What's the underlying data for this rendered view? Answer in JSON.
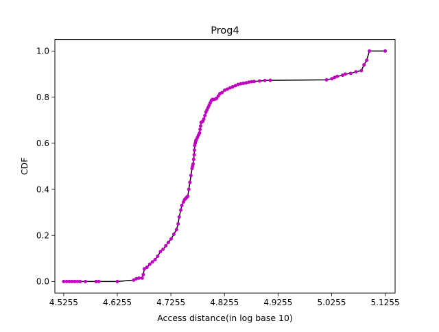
{
  "chart_data": {
    "type": "line",
    "title": "Prog4",
    "xlabel": "Access distance(in log base 10)",
    "ylabel": "CDF",
    "xlim": [
      4.509,
      5.144
    ],
    "ylim": [
      -0.05,
      1.05
    ],
    "xticks": [
      4.5255,
      4.6255,
      4.7255,
      4.8255,
      4.9255,
      5.0255,
      5.1255
    ],
    "xtick_labels": [
      "4.5255",
      "4.6255",
      "4.7255",
      "4.8255",
      "4.9255",
      "5.0255",
      "5.1255"
    ],
    "yticks": [
      0.0,
      0.2,
      0.4,
      0.6,
      0.8,
      1.0
    ],
    "ytick_labels": [
      "0.0",
      "0.2",
      "0.4",
      "0.6",
      "0.8",
      "1.0"
    ],
    "grid": false,
    "line_color": "#000000",
    "marker_color": "#bf00bf",
    "series": [
      {
        "x": [
          4.5255,
          4.531,
          4.536,
          4.541,
          4.546,
          4.551,
          4.556,
          4.566,
          4.586,
          4.591,
          4.6255,
          4.656,
          4.661,
          4.666,
          4.672,
          4.674,
          4.676,
          4.681,
          4.686,
          4.691,
          4.696,
          4.701,
          4.706,
          4.711,
          4.716,
          4.721,
          4.726,
          4.731,
          4.736,
          4.739,
          4.741,
          4.744,
          4.746,
          4.749,
          4.751,
          4.753,
          4.755,
          4.757,
          4.759,
          4.761,
          4.763,
          4.765,
          4.766,
          4.767,
          4.768,
          4.769,
          4.7695,
          4.77,
          4.771,
          4.772,
          4.773,
          4.775,
          4.777,
          4.779,
          4.78,
          4.781,
          4.782,
          4.783,
          4.785,
          4.787,
          4.789,
          4.791,
          4.793,
          4.795,
          4.797,
          4.799,
          4.801,
          4.803,
          4.806,
          4.809,
          4.811,
          4.814,
          4.817,
          4.821,
          4.826,
          4.831,
          4.836,
          4.841,
          4.846,
          4.851,
          4.856,
          4.861,
          4.866,
          4.871,
          4.876,
          4.881,
          4.891,
          4.901,
          4.911,
          5.016,
          5.026,
          5.031,
          5.036,
          5.046,
          5.051,
          5.061,
          5.071,
          5.081,
          5.086,
          5.091,
          5.096,
          5.1255
        ],
        "y": [
          0.0,
          0.0,
          0.0,
          0.0,
          0.0,
          0.0,
          0.0,
          0.0,
          0.0,
          0.0,
          0.0,
          0.006,
          0.012,
          0.015,
          0.015,
          0.03,
          0.055,
          0.062,
          0.075,
          0.085,
          0.095,
          0.11,
          0.13,
          0.14,
          0.155,
          0.17,
          0.185,
          0.205,
          0.225,
          0.25,
          0.28,
          0.31,
          0.33,
          0.345,
          0.355,
          0.36,
          0.365,
          0.37,
          0.4,
          0.43,
          0.46,
          0.49,
          0.5,
          0.51,
          0.53,
          0.55,
          0.57,
          0.59,
          0.6,
          0.61,
          0.615,
          0.625,
          0.635,
          0.645,
          0.66,
          0.675,
          0.69,
          0.692,
          0.695,
          0.705,
          0.72,
          0.735,
          0.745,
          0.755,
          0.765,
          0.775,
          0.785,
          0.79,
          0.79,
          0.792,
          0.795,
          0.805,
          0.815,
          0.82,
          0.83,
          0.835,
          0.84,
          0.845,
          0.85,
          0.855,
          0.858,
          0.86,
          0.862,
          0.865,
          0.867,
          0.868,
          0.87,
          0.872,
          0.873,
          0.875,
          0.88,
          0.885,
          0.89,
          0.895,
          0.9,
          0.903,
          0.91,
          0.915,
          0.94,
          0.96,
          1.0,
          1.0
        ]
      }
    ]
  }
}
